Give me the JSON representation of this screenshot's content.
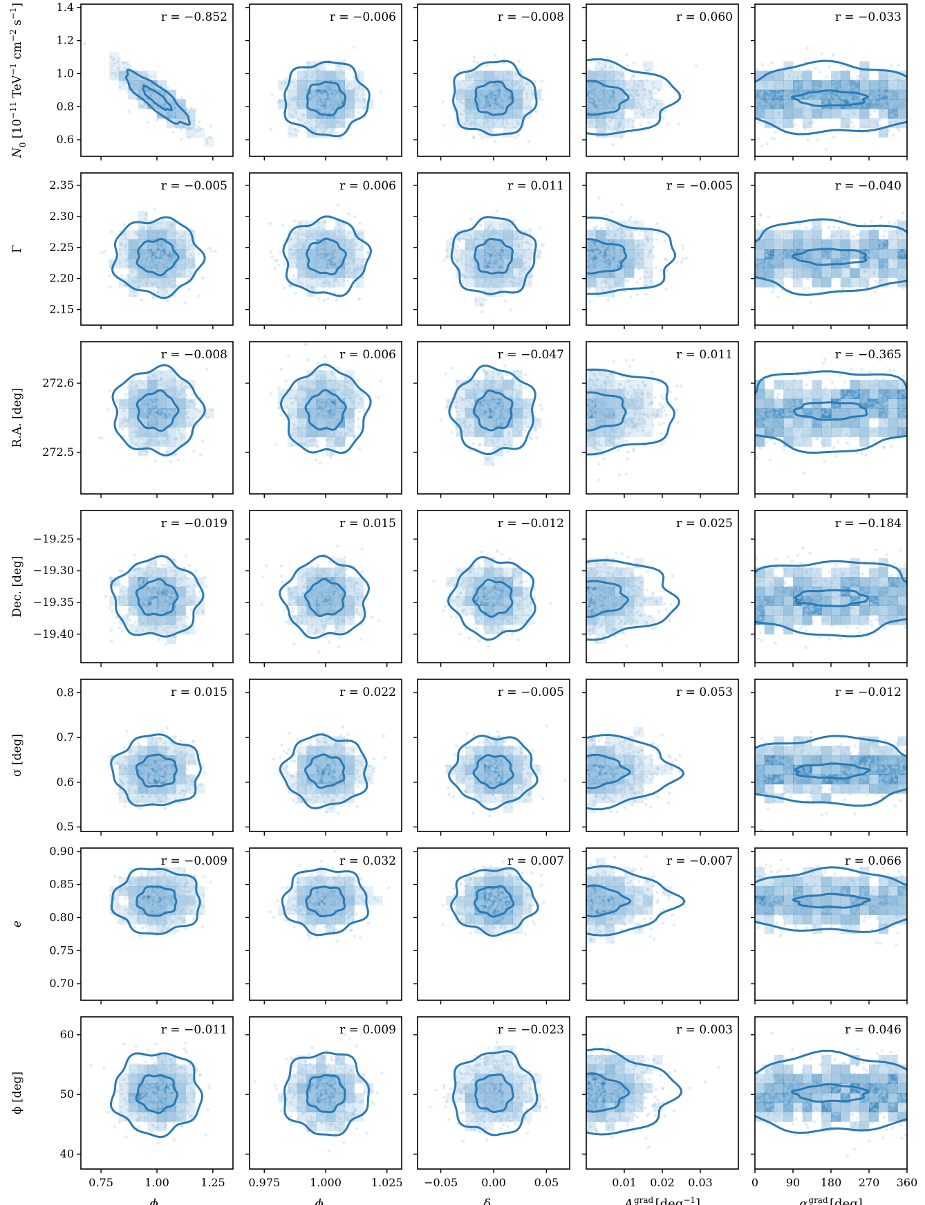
{
  "figure": {
    "rows": [
      {
        "key": "N0",
        "label": "N",
        "label_sub": "0",
        "label_rest": " [10",
        "label_sup1": "−11",
        "label_rest2": " TeV",
        "label_sup2": "−1",
        "label_rest3": " cm",
        "label_sup3": "−2",
        "label_rest4": " s",
        "label_sup4": "−1",
        "label_rest5": "]",
        "ylim": [
          0.5,
          1.42
        ],
        "ticks": [
          0.6,
          0.8,
          1.0,
          1.2,
          1.4
        ],
        "tick_labels": [
          "0.6",
          "0.8",
          "1.0",
          "1.2",
          "1.4"
        ],
        "center": 0.85,
        "spread": 0.09
      },
      {
        "key": "Gamma",
        "label": "Γ",
        "ylim": [
          2.125,
          2.37
        ],
        "ticks": [
          2.15,
          2.2,
          2.25,
          2.3,
          2.35
        ],
        "tick_labels": [
          "2.15",
          "2.20",
          "2.25",
          "2.30",
          "2.35"
        ],
        "center": 2.235,
        "spread": 0.025
      },
      {
        "key": "RA",
        "label": "R.A. [deg]",
        "ylim": [
          272.44,
          272.66
        ],
        "ticks": [
          272.5,
          272.6
        ],
        "tick_labels": [
          "272.5",
          "272.6"
        ],
        "center": 272.56,
        "spread": 0.025
      },
      {
        "key": "Dec",
        "label": "Dec. [deg]",
        "ylim": [
          -19.445,
          -19.205
        ],
        "ticks": [
          -19.4,
          -19.35,
          -19.3,
          -19.25
        ],
        "tick_labels": [
          "−19.40",
          "−19.35",
          "−19.30",
          "−19.25"
        ],
        "center": -19.343,
        "spread": 0.025
      },
      {
        "key": "sigma",
        "label": "σ [deg]",
        "ylim": [
          0.49,
          0.83
        ],
        "ticks": [
          0.5,
          0.6,
          0.7,
          0.8
        ],
        "tick_labels": [
          "0.5",
          "0.6",
          "0.7",
          "0.8"
        ],
        "center": 0.625,
        "spread": 0.032
      },
      {
        "key": "e",
        "label": "e",
        "ylim": [
          0.675,
          0.905
        ],
        "ticks": [
          0.7,
          0.75,
          0.8,
          0.85,
          0.9
        ],
        "tick_labels": [
          "0.70",
          "0.75",
          "0.80",
          "0.85",
          "0.90"
        ],
        "center": 0.825,
        "spread": 0.02
      },
      {
        "key": "phi",
        "label": "ϕ [deg]",
        "ylim": [
          37.5,
          63
        ],
        "ticks": [
          40,
          50,
          60
        ],
        "tick_labels": [
          "40",
          "50",
          "60"
        ],
        "center": 50.2,
        "spread": 2.8
      }
    ],
    "columns": [
      {
        "key": "phiE",
        "label": "ϕ",
        "label_sub": "E",
        "xlim": [
          0.66,
          1.34
        ],
        "ticks": [
          0.75,
          1.0,
          1.25
        ],
        "tick_labels": [
          "0.75",
          "1.00",
          "1.25"
        ],
        "center": 1.0,
        "spread": 0.08
      },
      {
        "key": "phiBG",
        "label": "ϕ",
        "label_sub": "BG",
        "xlim": [
          0.969,
          1.031
        ],
        "ticks": [
          0.975,
          1.0,
          1.025
        ],
        "tick_labels": [
          "0.975",
          "1.000",
          "1.025"
        ],
        "center": 1.0,
        "spread": 0.007
      },
      {
        "key": "deltaBG",
        "label": "δ",
        "label_sub": "BG",
        "xlim": [
          -0.072,
          0.072
        ],
        "ticks": [
          -0.05,
          0.0,
          0.05
        ],
        "tick_labels": [
          "−0.05",
          "0.00",
          "0.05"
        ],
        "center": 0.0,
        "spread": 0.016
      },
      {
        "key": "Agrad",
        "label": "A",
        "label_sub": "BG",
        "label_sup": "grad",
        "label_rest": " [deg",
        "label_sup2": "−1",
        "label_rest2": "]",
        "xlim": [
          0.0,
          0.04
        ],
        "ticks": [
          0.01,
          0.02,
          0.03
        ],
        "tick_labels": [
          "0.01",
          "0.02",
          "0.03"
        ],
        "center": 0.0,
        "spread": 0.008
      },
      {
        "key": "alphagrad",
        "label": "α",
        "label_sub": "BG",
        "label_sup": "grad",
        "label_rest": " [deg]",
        "xlim": [
          0,
          360
        ],
        "ticks": [
          0,
          90,
          180,
          270,
          360
        ],
        "tick_labels": [
          "0",
          "90",
          "180",
          "270",
          "360"
        ],
        "center": 180,
        "spread": 0
      }
    ]
  },
  "chart_data": {
    "type": "scatter",
    "description_kind": "corner-plot-correlation-matrix",
    "row_parameters": [
      "N0",
      "Gamma",
      "RA",
      "Dec",
      "sigma",
      "e",
      "phi"
    ],
    "column_parameters": [
      "phiE",
      "phiBG",
      "deltaBG",
      "Agrad",
      "alphagrad"
    ],
    "correlations": [
      [
        "r = −0.852",
        "r = −0.006",
        "r = −0.008",
        "r = 0.060",
        "r = −0.033"
      ],
      [
        "r = −0.005",
        "r = 0.006",
        "r = 0.011",
        "r = −0.005",
        "r = −0.040"
      ],
      [
        "r = −0.008",
        "r = 0.006",
        "r = −0.047",
        "r = 0.011",
        "r = −0.365"
      ],
      [
        "r = −0.019",
        "r = 0.015",
        "r = −0.012",
        "r = 0.025",
        "r = −0.184"
      ],
      [
        "r = 0.015",
        "r = 0.022",
        "r = −0.005",
        "r = 0.053",
        "r = −0.012"
      ],
      [
        "r = −0.009",
        "r = 0.032",
        "r = 0.007",
        "r = −0.007",
        "r = 0.066"
      ],
      [
        "r = −0.011",
        "r = 0.009",
        "r = −0.023",
        "r = 0.003",
        "r = 0.046"
      ]
    ],
    "correlation_values": [
      [
        -0.852,
        -0.006,
        -0.008,
        0.06,
        -0.033
      ],
      [
        -0.005,
        0.006,
        0.011,
        -0.005,
        -0.04
      ],
      [
        -0.008,
        0.006,
        -0.047,
        0.011,
        -0.365
      ],
      [
        -0.019,
        0.015,
        -0.012,
        0.025,
        -0.184
      ],
      [
        0.015,
        0.022,
        -0.005,
        0.053,
        -0.012
      ],
      [
        -0.009,
        0.032,
        0.007,
        -0.007,
        0.066
      ],
      [
        -0.011,
        0.009,
        -0.023,
        0.003,
        0.046
      ]
    ],
    "grid": false,
    "colors": {
      "points": "#a6c8e4",
      "hist": "#1f77b4",
      "contour": "#2a7ab5"
    }
  }
}
